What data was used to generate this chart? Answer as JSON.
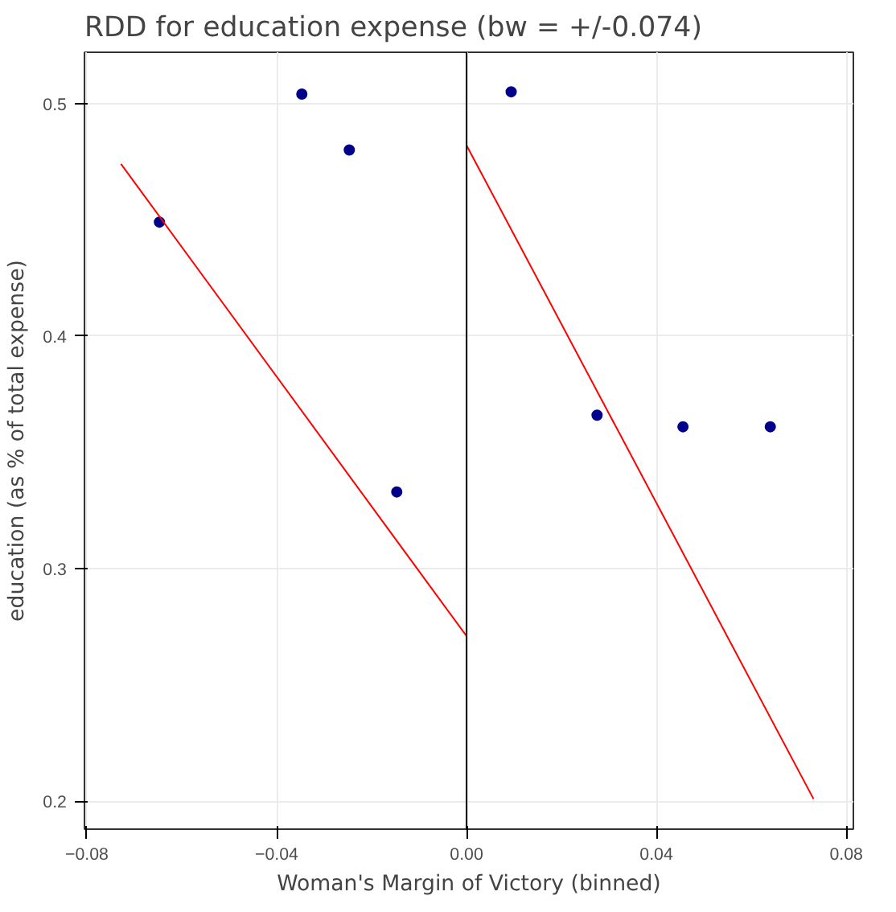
{
  "chart_data": {
    "type": "scatter",
    "title": "RDD for education expense (bw = +/-0.074)",
    "xlabel": "Woman's Margin of Victory (binned)",
    "ylabel": "education (as % of total expense)",
    "series": [
      {
        "marker": "circle",
        "color": "#00008b",
        "x": [
          -0.0647,
          -0.0347,
          -0.0247,
          -0.0147,
          0.0094,
          0.0275,
          0.0456,
          0.064
        ],
        "values": [
          0.449,
          0.504,
          0.48,
          0.333,
          0.505,
          0.366,
          0.361,
          0.361
        ]
      },
      {
        "type": "line",
        "color": "#ff0000",
        "x": [
          -0.0728,
          0.0
        ],
        "values": [
          0.474,
          0.271
        ]
      },
      {
        "type": "line",
        "color": "#ff0000",
        "x": [
          0.0,
          0.0731
        ],
        "values": [
          0.482,
          0.201
        ]
      }
    ],
    "xlim": [
      -0.0805,
      0.0815
    ],
    "ylim": [
      0.188,
      0.522
    ],
    "xticks": [
      -0.08,
      -0.04,
      {
        "value": 0,
        "label": "0.00"
      },
      0.04,
      0.08
    ],
    "yticks": [
      0.2,
      0.3,
      0.4,
      0.5
    ],
    "ref_lines": [
      {
        "axis": "x",
        "value": 0,
        "color": "#000000"
      }
    ],
    "grid": true
  }
}
